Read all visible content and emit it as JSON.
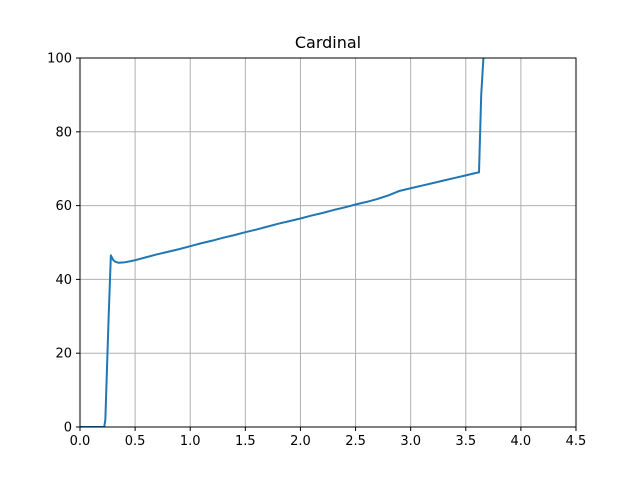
{
  "chart_data": {
    "type": "line",
    "title": "Cardinal",
    "xlabel": "",
    "ylabel": "",
    "xlim": [
      0.0,
      4.5
    ],
    "ylim": [
      0,
      100
    ],
    "grid": true,
    "x_ticks": [
      "0.0",
      "0.5",
      "1.0",
      "1.5",
      "2.0",
      "2.5",
      "3.0",
      "3.5",
      "4.0",
      "4.5"
    ],
    "x_tick_values": [
      0.0,
      0.5,
      1.0,
      1.5,
      2.0,
      2.5,
      3.0,
      3.5,
      4.0,
      4.5
    ],
    "y_ticks": [
      "0",
      "20",
      "40",
      "60",
      "80",
      "100"
    ],
    "y_tick_values": [
      0,
      20,
      40,
      60,
      80,
      100
    ],
    "series": [
      {
        "color": "#1f77b4",
        "x": [
          0.0,
          0.1,
          0.22,
          0.23,
          0.26,
          0.28,
          0.3,
          0.32,
          0.35,
          0.4,
          0.5,
          0.6,
          0.7,
          0.8,
          0.9,
          1.0,
          1.1,
          1.2,
          1.3,
          1.4,
          1.5,
          1.6,
          1.7,
          1.8,
          1.9,
          2.0,
          2.1,
          2.2,
          2.3,
          2.4,
          2.5,
          2.6,
          2.7,
          2.8,
          2.9,
          3.0,
          3.1,
          3.2,
          3.3,
          3.4,
          3.5,
          3.6,
          3.62,
          3.64,
          3.66
        ],
        "y": [
          0,
          0,
          0,
          2,
          30,
          46.5,
          45.3,
          44.8,
          44.5,
          44.6,
          45.2,
          46.0,
          46.8,
          47.5,
          48.2,
          49.0,
          49.8,
          50.5,
          51.3,
          52.0,
          52.8,
          53.5,
          54.3,
          55.1,
          55.8,
          56.5,
          57.3,
          58.0,
          58.8,
          59.5,
          60.3,
          61.0,
          61.8,
          62.8,
          64.0,
          64.7,
          65.4,
          66.1,
          66.8,
          67.5,
          68.2,
          68.9,
          69.0,
          90.0,
          100
        ]
      }
    ]
  }
}
